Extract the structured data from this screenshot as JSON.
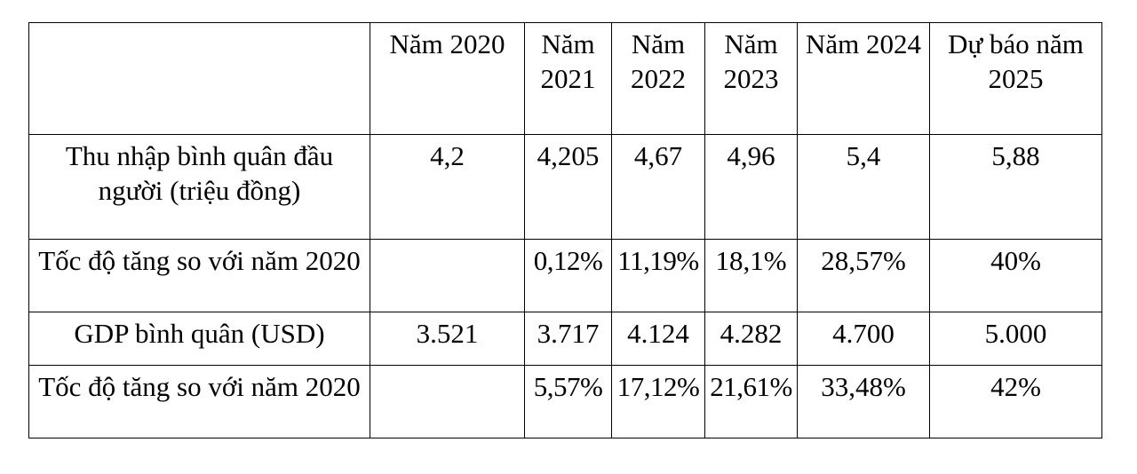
{
  "table": {
    "headers": [
      "",
      "Năm 2020",
      "Năm 2021",
      "Năm 2022",
      "Năm 2023",
      "Năm 2024",
      "Dự báo năm 2025"
    ],
    "rows": [
      {
        "label": "Thu nhập bình quân đầu người (triệu đồng)",
        "values": [
          "4,2",
          "4,205",
          "4,67",
          "4,96",
          "5,4",
          "5,88"
        ]
      },
      {
        "label": "Tốc độ tăng so với năm 2020",
        "values": [
          "",
          "0,12%",
          "11,19%",
          "18,1%",
          "28,57%",
          "40%"
        ]
      },
      {
        "label": "GDP bình quân (USD)",
        "values": [
          "3.521",
          "3.717",
          "4.124",
          "4.282",
          "4.700",
          "5.000"
        ]
      },
      {
        "label": "Tốc độ tăng so với năm 2020",
        "values": [
          "",
          "5,57%",
          "17,12%",
          "21,61%",
          "33,48%",
          "42%"
        ]
      }
    ]
  }
}
